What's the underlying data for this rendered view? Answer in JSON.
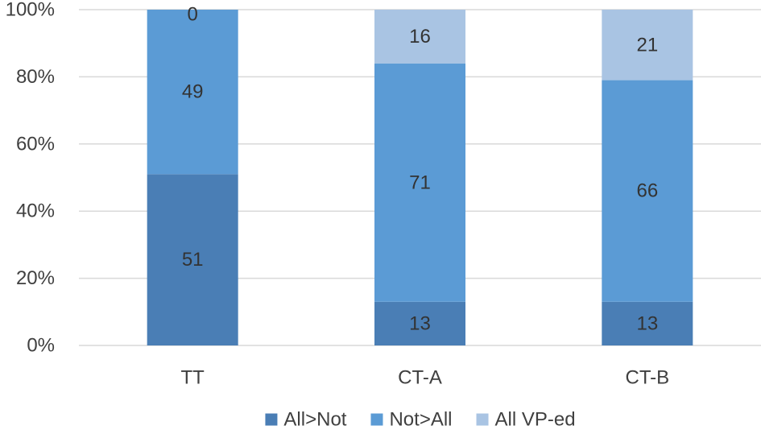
{
  "chart_data": {
    "type": "bar",
    "stacked": true,
    "percent_stacked": true,
    "categories": [
      "TT",
      "CT-A",
      "CT-B"
    ],
    "series": [
      {
        "name": "All>Not",
        "values": [
          51,
          13,
          13
        ],
        "color": "#4a7eb5"
      },
      {
        "name": "Not>All",
        "values": [
          49,
          71,
          66
        ],
        "color": "#5b9bd5"
      },
      {
        "name": "All VP-ed",
        "values": [
          0,
          16,
          21
        ],
        "color": "#a9c4e3"
      }
    ],
    "data_labels": [
      [
        "51",
        "13",
        "13"
      ],
      [
        "49",
        "71",
        "66"
      ],
      [
        "0",
        "16",
        "21"
      ]
    ],
    "ylim": [
      0,
      100
    ],
    "yticks": [
      0,
      20,
      40,
      60,
      80,
      100
    ],
    "ytick_labels": [
      "0%",
      "20%",
      "40%",
      "60%",
      "80%",
      "100%"
    ],
    "grid": true,
    "legend_position": "bottom"
  }
}
